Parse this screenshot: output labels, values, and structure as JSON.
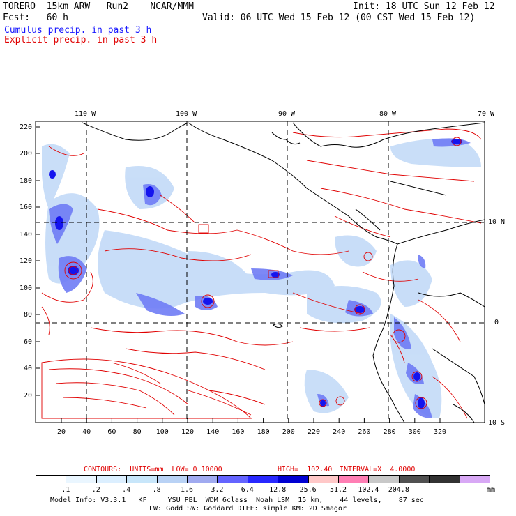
{
  "header": {
    "model": "TORERO  15km ARW   Run2    NCAR/MMM",
    "init": "Init: 18 UTC Sun 12 Feb 12",
    "fcst": "Fcst:   60 h",
    "valid": "Valid: 06 UTC Wed 15 Feb 12 (00 CST Wed 15 Feb 12)",
    "cumulus": "Cumulus precip. in past 3 h",
    "explicit": "Explicit precip. in past 3 h"
  },
  "colors": {
    "cumulus": "#1a1aff",
    "explicit": "#e00000",
    "contour": "#e00000",
    "coast": "#000000"
  },
  "axes": {
    "lon_labels": [
      "110 W",
      "100 W",
      "90 W",
      "80 W",
      "70 W"
    ],
    "lat_labels": [
      "10 N",
      "0",
      "10 S"
    ],
    "y_ticks": [
      "220",
      "200",
      "180",
      "160",
      "140",
      "120",
      "100",
      "80",
      "60",
      "40",
      "20"
    ],
    "x_ticks": [
      "20",
      "40",
      "60",
      "80",
      "100",
      "120",
      "140",
      "160",
      "180",
      "200",
      "220",
      "240",
      "260",
      "280",
      "300",
      "320"
    ]
  },
  "contours": {
    "text_label": "CONTOURS:  UNITS=mm  LOW= 0.10000",
    "text_high": "HIGH=  102.40",
    "text_interval": "INTERVAL=X  4.0000"
  },
  "legend": {
    "values": [
      ".1",
      ".2",
      ".4",
      ".8",
      "1.6",
      "3.2",
      "6.4",
      "12.8",
      "25.6",
      "51.2",
      "102.4",
      "204.8"
    ],
    "unit": "mm",
    "colors": [
      "#ffffff",
      "#eaf6ff",
      "#dcefff",
      "#c8e6fa",
      "#b9d2f5",
      "#a0aaf0",
      "#6464ff",
      "#2828ff",
      "#0000d2",
      "#ffc8c8",
      "#ff7eb4",
      "#c8c8c8",
      "#505050",
      "#323232",
      "#d8a8f5"
    ]
  },
  "footer": {
    "line1": "Model Info: V3.3.1   KF     YSU PBL  WDM 6class  Noah LSM  15 km,    44 levels,    87 sec",
    "line2": "LW: Godd SW: Goddard DIFF: simple KM: 2D Smagor"
  }
}
